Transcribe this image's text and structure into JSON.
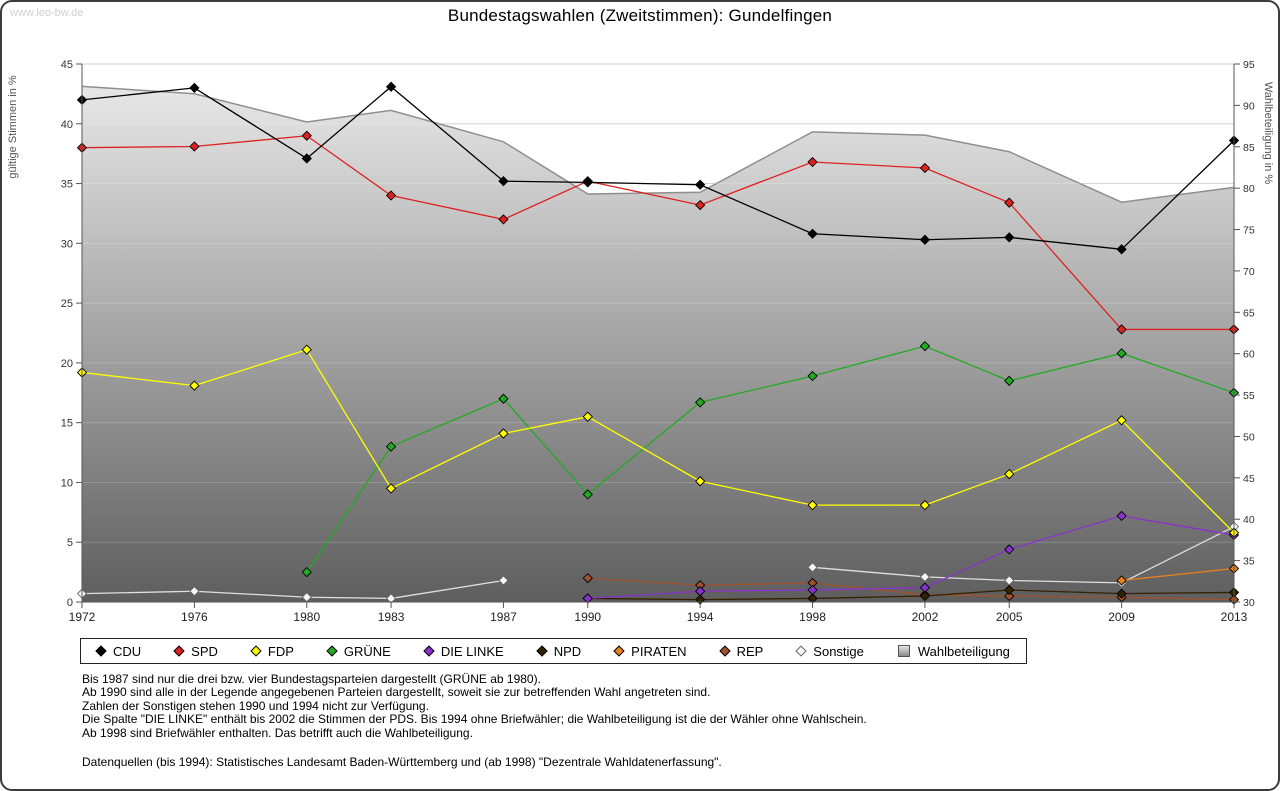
{
  "watermark": "www.leo-bw.de",
  "chart_data": {
    "type": "line",
    "title": "Bundestagswahlen (Zweitstimmen): Gundelfingen",
    "x": [
      1972,
      1976,
      1980,
      1983,
      1987,
      1990,
      1994,
      1998,
      2002,
      2005,
      2009,
      2013
    ],
    "ylabel_left": "gültige Stimmen in %",
    "ylabel_right": "Wahlbeteiligung in %",
    "ylim_left": [
      0,
      45
    ],
    "ylim_right": [
      30,
      95
    ],
    "ytick_step": 5,
    "grid": "horizontal",
    "legend_position": "bottom",
    "gridline_color": "#cccccc",
    "axis_color": "#555555",
    "series": [
      {
        "name": "CDU",
        "color": "#000000",
        "axis": "left",
        "values": [
          42.0,
          43.0,
          37.1,
          43.1,
          35.2,
          35.1,
          34.9,
          30.8,
          30.3,
          30.5,
          29.5,
          38.6
        ]
      },
      {
        "name": "SPD",
        "color": "#dd2222",
        "axis": "left",
        "values": [
          38.0,
          38.1,
          39.0,
          34.0,
          32.0,
          35.2,
          33.2,
          36.8,
          36.3,
          33.4,
          22.8,
          22.8
        ]
      },
      {
        "name": "FDP",
        "color": "#ffff00",
        "axis": "left",
        "values": [
          19.2,
          18.1,
          21.1,
          9.5,
          14.1,
          15.5,
          10.1,
          8.1,
          8.1,
          10.7,
          15.2,
          5.8
        ]
      },
      {
        "name": "GRÜNE",
        "color": "#22aa22",
        "axis": "left",
        "values": [
          null,
          null,
          2.5,
          13.0,
          17.0,
          9.0,
          16.7,
          18.9,
          21.4,
          18.5,
          20.8,
          17.5
        ]
      },
      {
        "name": "DIE LINKE",
        "color": "#8833cc",
        "axis": "left",
        "values": [
          null,
          null,
          null,
          null,
          null,
          0.3,
          0.9,
          1.0,
          1.2,
          4.4,
          7.2,
          5.6
        ]
      },
      {
        "name": "NPD",
        "color": "#332200",
        "axis": "left",
        "values": [
          null,
          null,
          null,
          null,
          null,
          0.3,
          0.2,
          0.3,
          0.5,
          1.0,
          0.7,
          0.8
        ]
      },
      {
        "name": "PIRATEN",
        "color": "#e8821e",
        "axis": "left",
        "values": [
          null,
          null,
          null,
          null,
          null,
          null,
          null,
          null,
          null,
          null,
          1.8,
          2.8
        ]
      },
      {
        "name": "REP",
        "color": "#a0522d",
        "axis": "left",
        "values": [
          null,
          null,
          null,
          null,
          null,
          2.0,
          1.4,
          1.6,
          0.6,
          0.5,
          0.4,
          0.2
        ]
      },
      {
        "name": "Sonstige",
        "color": "#e0e0e0",
        "marker_fill": "#f8f8f8",
        "marker_edge": "#666666",
        "axis": "left",
        "values": [
          0.7,
          0.9,
          0.4,
          0.3,
          1.8,
          null,
          null,
          2.9,
          2.1,
          1.8,
          1.6,
          6.3
        ]
      }
    ],
    "participation": {
      "name": "Wahlbeteiligung",
      "axis": "right",
      "type": "area",
      "values": [
        92.3,
        91.4,
        88.0,
        89.4,
        85.6,
        79.3,
        79.5,
        86.8,
        86.4,
        84.4,
        78.3,
        80.1
      ],
      "fill_top": "#ededed",
      "fill_bottom": "#5e5e5e",
      "edge": "#8f8f8f"
    }
  },
  "notes": [
    "Bis 1987 sind nur die drei bzw. vier Bundestagsparteien dargestellt (GRÜNE ab 1980).",
    "Ab 1990 sind alle in der Legende angegebenen Parteien dargestellt, soweit sie zur betreffenden Wahl angetreten sind.",
    "Zahlen der Sonstigen stehen 1990 und 1994 nicht zur Verfügung.",
    "Die Spalte \"DIE LINKE\" enthält bis 2002 die Stimmen der PDS. Bis 1994 ohne Briefwähler; die Wahlbeteiligung ist die der Wähler ohne Wahlschein.",
    "Ab 1998 sind Briefwähler enthalten. Das betrifft auch die Wahlbeteiligung."
  ],
  "source": "Datenquellen (bis 1994): Statistisches Landesamt Baden-Württemberg und (ab 1998) \"Dezentrale Wahldatenerfassung\"."
}
